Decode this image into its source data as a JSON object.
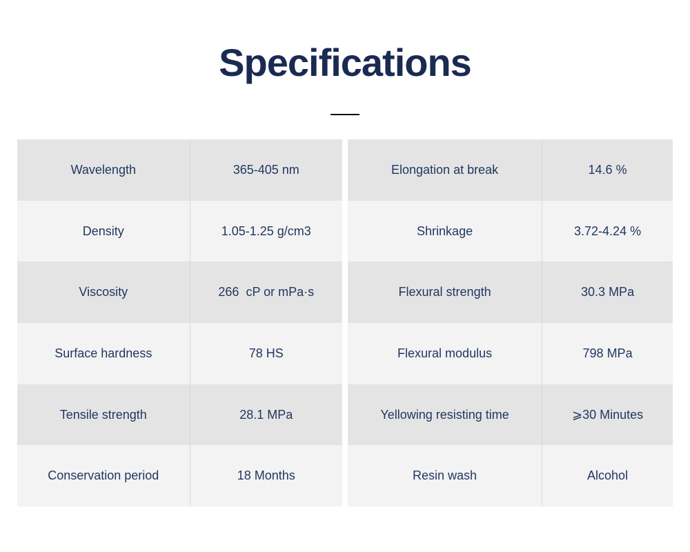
{
  "title": "Specifications",
  "colors": {
    "page_bg": "#ffffff",
    "title_text": "#1a2a52",
    "cell_text": "#22375e",
    "row_gray": "#e4e4e5",
    "row_light": "#f3f3f4",
    "divider": "#d8d8d9",
    "underline": "#0a0a0a"
  },
  "spec_tables": {
    "left": {
      "rows": [
        {
          "label": "Wavelength",
          "value": "365-405 nm"
        },
        {
          "label": "Density",
          "value": "1.05-1.25 g/cm3"
        },
        {
          "label": "Viscosity",
          "value": "266  cP or mPa·s"
        },
        {
          "label": "Surface hardness",
          "value": "78 HS"
        },
        {
          "label": "Tensile strength",
          "value": "28.1 MPa"
        },
        {
          "label": "Conservation period",
          "value": "18 Months"
        }
      ]
    },
    "right": {
      "rows": [
        {
          "label": "Elongation at break",
          "value": "14.6 %"
        },
        {
          "label": "Shrinkage",
          "value": "3.72-4.24 %"
        },
        {
          "label": "Flexural strength",
          "value": "30.3 MPa"
        },
        {
          "label": "Flexural modulus",
          "value": "798 MPa"
        },
        {
          "label": "Yellowing resisting time",
          "value": "⩾30 Minutes"
        },
        {
          "label": "Resin wash",
          "value": "Alcohol"
        }
      ]
    }
  }
}
